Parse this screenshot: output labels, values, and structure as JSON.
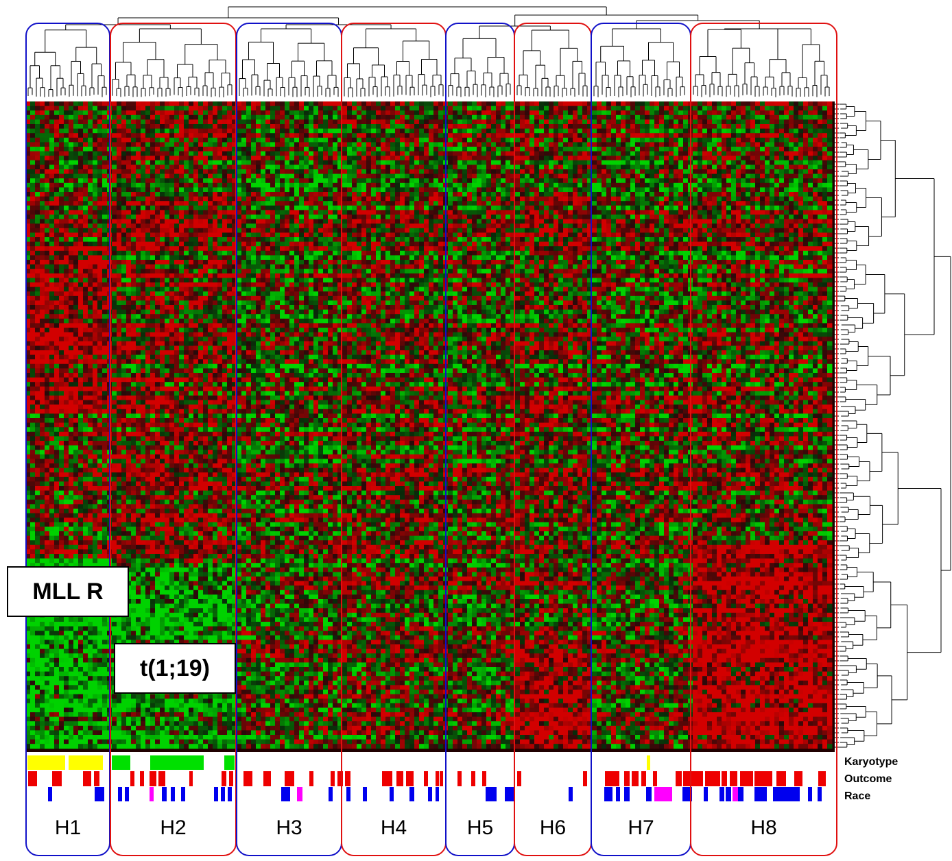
{
  "clusters": [
    {
      "label": "H1",
      "border_color": "#1010c8"
    },
    {
      "label": "H2",
      "border_color": "#e01010"
    },
    {
      "label": "H3",
      "border_color": "#1010c8"
    },
    {
      "label": "H4",
      "border_color": "#e01010"
    },
    {
      "label": "H5",
      "border_color": "#1010c8"
    },
    {
      "label": "H6",
      "border_color": "#e01010"
    },
    {
      "label": "H7",
      "border_color": "#1010c8"
    },
    {
      "label": "H8",
      "border_color": "#e01010"
    }
  ],
  "callouts": {
    "mll": "MLL R",
    "t119": "t(1;19)"
  },
  "tracks": {
    "karyotype": "Karyotype",
    "outcome": "Outcome",
    "race": "Race"
  },
  "colors": {
    "heat_high": "#cc0000",
    "heat_low": "#00cc00",
    "heat_mid": "#000000",
    "karyotype_yellow": "#ffff00",
    "karyotype_green": "#00e000",
    "outcome_red": "#ee0000",
    "race_blue": "#0000ee",
    "race_magenta": "#ff00ff",
    "dendrogram": "#000000"
  }
}
